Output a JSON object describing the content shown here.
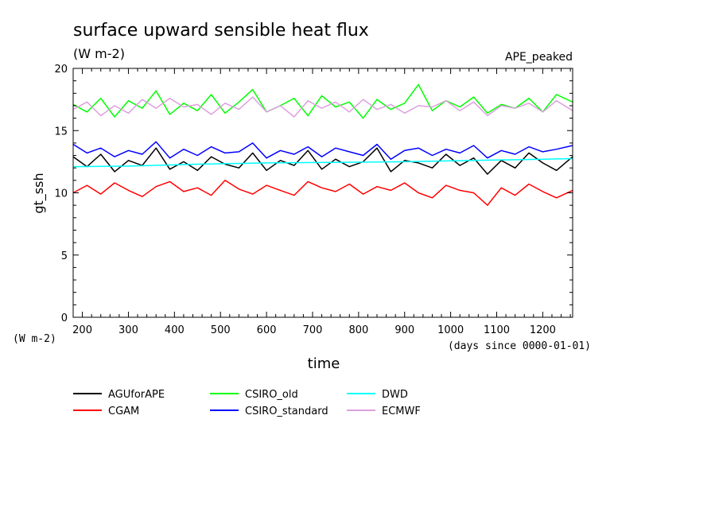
{
  "chart_data": {
    "type": "line",
    "title": "surface upward sensible heat flux",
    "subtitle": "(W m-2)",
    "annotation_right": "APE_peaked",
    "xlabel": "time",
    "x_unit": "(days since 0000-01-01)",
    "ylabel": "gt_ssh",
    "y_unit": "(W m-2)",
    "xlim": [
      180,
      1265
    ],
    "ylim": [
      0,
      20
    ],
    "xticks": [
      200,
      300,
      400,
      500,
      600,
      700,
      800,
      900,
      1000,
      1100,
      1200
    ],
    "yticks": [
      0,
      5,
      10,
      15,
      20
    ],
    "grid": false,
    "legend_position": "bottom",
    "series": [
      {
        "name": "AGUforAPE",
        "color": "#000000",
        "x": [
          180,
          210,
          240,
          270,
          300,
          330,
          360,
          390,
          420,
          450,
          480,
          510,
          540,
          570,
          600,
          630,
          660,
          690,
          720,
          750,
          780,
          810,
          840,
          870,
          900,
          930,
          960,
          990,
          1020,
          1050,
          1080,
          1110,
          1140,
          1170,
          1200,
          1230,
          1265
        ],
        "y": [
          12.9,
          12.1,
          13.1,
          11.7,
          12.6,
          12.2,
          13.6,
          11.9,
          12.5,
          11.8,
          12.9,
          12.3,
          12.0,
          13.2,
          11.8,
          12.6,
          12.2,
          13.4,
          11.9,
          12.7,
          12.1,
          12.5,
          13.6,
          11.7,
          12.6,
          12.4,
          12.0,
          13.1,
          12.2,
          12.8,
          11.5,
          12.6,
          12.0,
          13.2,
          12.4,
          11.8,
          12.9
        ]
      },
      {
        "name": "CGAM",
        "color": "#ff0000",
        "x": [
          180,
          210,
          240,
          270,
          300,
          330,
          360,
          390,
          420,
          450,
          480,
          510,
          540,
          570,
          600,
          630,
          660,
          690,
          720,
          750,
          780,
          810,
          840,
          870,
          900,
          930,
          960,
          990,
          1020,
          1050,
          1080,
          1110,
          1140,
          1170,
          1200,
          1230,
          1265
        ],
        "y": [
          10.0,
          10.6,
          9.9,
          10.8,
          10.2,
          9.7,
          10.5,
          10.9,
          10.1,
          10.4,
          9.8,
          11.0,
          10.3,
          9.9,
          10.6,
          10.2,
          9.8,
          10.9,
          10.4,
          10.1,
          10.7,
          9.9,
          10.5,
          10.2,
          10.8,
          10.0,
          9.6,
          10.6,
          10.2,
          10.0,
          9.0,
          10.4,
          9.8,
          10.7,
          10.1,
          9.6,
          10.2
        ]
      },
      {
        "name": "CSIRO_old",
        "color": "#00ff00",
        "x": [
          180,
          210,
          240,
          270,
          300,
          330,
          360,
          390,
          420,
          450,
          480,
          510,
          540,
          570,
          600,
          630,
          660,
          690,
          720,
          750,
          780,
          810,
          840,
          870,
          900,
          930,
          960,
          990,
          1020,
          1050,
          1080,
          1110,
          1140,
          1170,
          1200,
          1230,
          1265
        ],
        "y": [
          17.1,
          16.5,
          17.6,
          16.1,
          17.4,
          16.8,
          18.2,
          16.3,
          17.2,
          16.6,
          17.9,
          16.4,
          17.3,
          18.3,
          16.5,
          17.0,
          17.6,
          16.2,
          17.8,
          16.9,
          17.3,
          16.0,
          17.5,
          16.7,
          17.2,
          18.7,
          16.6,
          17.4,
          16.9,
          17.7,
          16.4,
          17.1,
          16.8,
          17.6,
          16.5,
          17.9,
          17.3
        ]
      },
      {
        "name": "CSIRO_standard",
        "color": "#0000ff",
        "x": [
          180,
          210,
          240,
          270,
          300,
          330,
          360,
          390,
          420,
          450,
          480,
          510,
          540,
          570,
          600,
          630,
          660,
          690,
          720,
          750,
          780,
          810,
          840,
          870,
          900,
          930,
          960,
          990,
          1020,
          1050,
          1080,
          1110,
          1140,
          1170,
          1200,
          1230,
          1265
        ],
        "y": [
          13.9,
          13.2,
          13.6,
          12.9,
          13.4,
          13.1,
          14.1,
          12.8,
          13.5,
          13.0,
          13.7,
          13.2,
          13.3,
          14.0,
          12.8,
          13.4,
          13.1,
          13.7,
          12.9,
          13.6,
          13.3,
          13.0,
          13.9,
          12.7,
          13.4,
          13.6,
          13.0,
          13.5,
          13.2,
          13.8,
          12.8,
          13.4,
          13.1,
          13.7,
          13.3,
          13.5,
          13.8
        ]
      },
      {
        "name": "DWD",
        "color": "#00ffff",
        "x": [
          180,
          300,
          450,
          600,
          750,
          900,
          1050,
          1200,
          1265
        ],
        "y": [
          12.1,
          12.15,
          12.3,
          12.4,
          12.45,
          12.5,
          12.6,
          12.7,
          12.75
        ]
      },
      {
        "name": "ECMWF",
        "color": "#dda0dd",
        "x": [
          180,
          210,
          240,
          270,
          300,
          330,
          360,
          390,
          420,
          450,
          480,
          510,
          540,
          570,
          600,
          630,
          660,
          690,
          720,
          750,
          780,
          810,
          840,
          870,
          900,
          930,
          960,
          990,
          1020,
          1050,
          1080,
          1110,
          1140,
          1170,
          1200,
          1230,
          1265
        ],
        "y": [
          16.7,
          17.3,
          16.2,
          17.0,
          16.4,
          17.5,
          16.8,
          17.6,
          16.9,
          17.1,
          16.3,
          17.2,
          16.7,
          17.7,
          16.5,
          17.0,
          16.1,
          17.4,
          16.8,
          17.3,
          16.5,
          17.5,
          16.7,
          17.1,
          16.4,
          17.0,
          16.9,
          17.4,
          16.6,
          17.3,
          16.2,
          17.0,
          16.8,
          17.2,
          16.5,
          17.4,
          16.6
        ]
      }
    ]
  }
}
